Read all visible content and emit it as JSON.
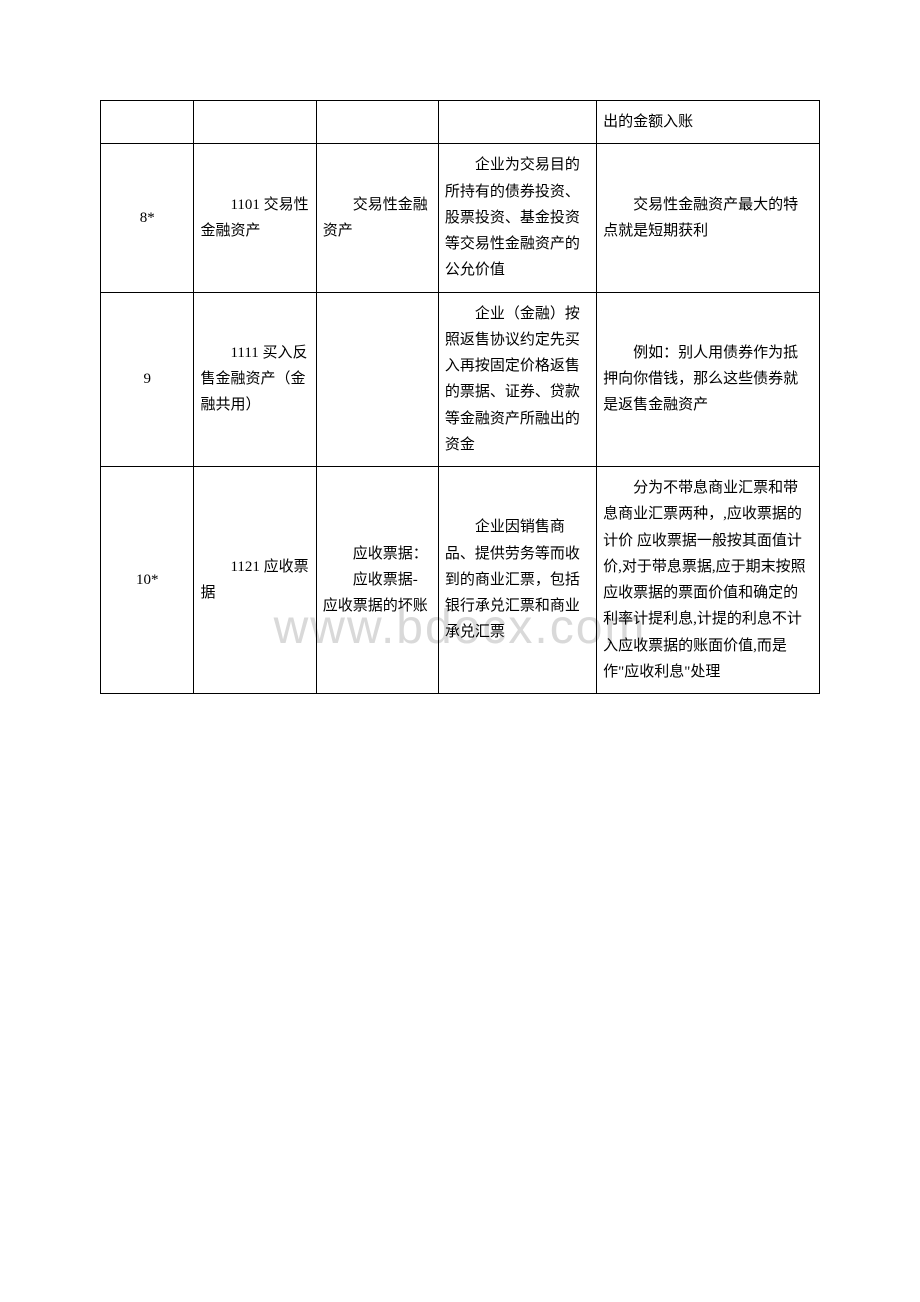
{
  "watermark": "www.bdocx.com",
  "table": {
    "columns": [
      {
        "width": "13%",
        "align": "center"
      },
      {
        "width": "17%",
        "align": "left"
      },
      {
        "width": "17%",
        "align": "left"
      },
      {
        "width": "22%",
        "align": "left"
      },
      {
        "width": "31%",
        "align": "left"
      }
    ],
    "border_color": "#000000",
    "background_color": "#ffffff",
    "font_size": 15,
    "line_height": 1.75,
    "text_color": "#000000",
    "rows": [
      {
        "cells": [
          {
            "text": ""
          },
          {
            "text": ""
          },
          {
            "text": ""
          },
          {
            "text": ""
          },
          {
            "text": "出的金额入账"
          }
        ]
      },
      {
        "cells": [
          {
            "text": "8*"
          },
          {
            "text": "1101 交易性金融资产"
          },
          {
            "text": "交易性金融资产"
          },
          {
            "text": "企业为交易目的所持有的债券投资、股票投资、基金投资等交易性金融资产的公允价值"
          },
          {
            "text": "交易性金融资产最大的特点就是短期获利"
          }
        ]
      },
      {
        "cells": [
          {
            "text": "9"
          },
          {
            "text": "1111 买入反售金融资产（金融共用）"
          },
          {
            "text": ""
          },
          {
            "text": "企业（金融）按照返售协议约定先买入再按固定价格返售的票据、证券、贷款等金融资产所融出的资金"
          },
          {
            "text": "例如：别人用债券作为抵押向你借钱，那么这些债券就是返售金融资产"
          }
        ]
      },
      {
        "cells": [
          {
            "text": "10*"
          },
          {
            "text": "1121 应收票据"
          },
          {
            "text_lines": [
              "应收票据：",
              "应收票据-应收票据的坏账"
            ]
          },
          {
            "text": "企业因销售商品、提供劳务等而收到的商业汇票，包括银行承兑汇票和商业承兑汇票"
          },
          {
            "text": "分为不带息商业汇票和带息商业汇票两种，,应收票据的计价 应收票据一般按其面值计价,对于带息票据,应于期末按照应收票据的票面价值和确定的利率计提利息,计提的利息不计入应收票据的账面价值,而是作\"应收利息\"处理"
          }
        ]
      }
    ]
  }
}
